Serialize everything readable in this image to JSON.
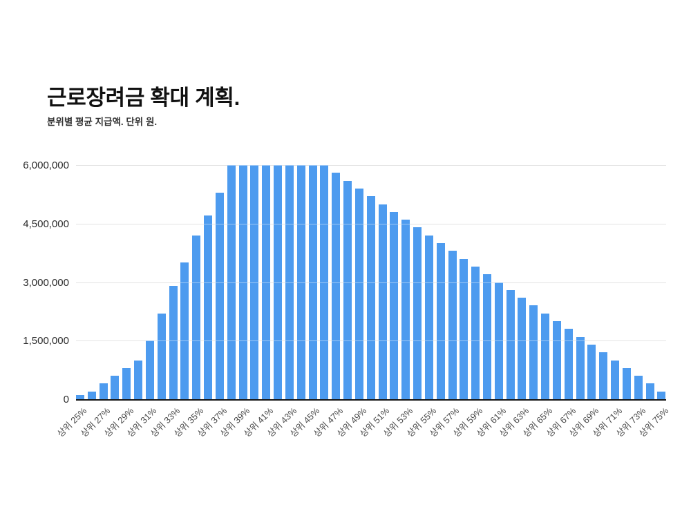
{
  "header": {
    "title": "근로장려금 확대 계획.",
    "subtitle": "분위별 평균 지급액. 단위 원."
  },
  "chart_data": {
    "type": "bar",
    "title": "근로장려금 확대 계획.",
    "subtitle": "분위별 평균 지급액. 단위 원.",
    "xlabel": "",
    "ylabel": "",
    "ylim": [
      0,
      6000000
    ],
    "grid": true,
    "bar_color": "#4d9bef",
    "gridline_color": "#cdcdcd",
    "axis_line_color": "#141414",
    "yticks": [
      0,
      1500000,
      3000000,
      4500000,
      6000000
    ],
    "ytick_labels": [
      "0",
      "1,500,000",
      "3,000,000",
      "4,500,000",
      "6,000,000"
    ],
    "xtick_label_step": 2,
    "categories": [
      "상위 25%",
      "상위 26%",
      "상위 27%",
      "상위 28%",
      "상위 29%",
      "상위 30%",
      "상위 31%",
      "상위 32%",
      "상위 33%",
      "상위 34%",
      "상위 35%",
      "상위 36%",
      "상위 37%",
      "상위 38%",
      "상위 39%",
      "상위 40%",
      "상위 41%",
      "상위 42%",
      "상위 43%",
      "상위 44%",
      "상위 45%",
      "상위 46%",
      "상위 47%",
      "상위 48%",
      "상위 49%",
      "상위 50%",
      "상위 51%",
      "상위 52%",
      "상위 53%",
      "상위 54%",
      "상위 55%",
      "상위 56%",
      "상위 57%",
      "상위 58%",
      "상위 59%",
      "상위 60%",
      "상위 61%",
      "상위 62%",
      "상위 63%",
      "상위 64%",
      "상위 65%",
      "상위 66%",
      "상위 67%",
      "상위 68%",
      "상위 69%",
      "상위 70%",
      "상위 71%",
      "상위 72%",
      "상위 73%",
      "상위 74%",
      "상위 75%"
    ],
    "values": [
      100000,
      200000,
      400000,
      600000,
      800000,
      1000000,
      1500000,
      2200000,
      2900000,
      3500000,
      4200000,
      4700000,
      5300000,
      6000000,
      6000000,
      6000000,
      6000000,
      6000000,
      6000000,
      6000000,
      6000000,
      6000000,
      5800000,
      5600000,
      5400000,
      5200000,
      5000000,
      4800000,
      4600000,
      4400000,
      4200000,
      4000000,
      3800000,
      3600000,
      3400000,
      3200000,
      3000000,
      2800000,
      2600000,
      2400000,
      2200000,
      2000000,
      1800000,
      1600000,
      1400000,
      1200000,
      1000000,
      800000,
      600000,
      400000,
      200000
    ]
  }
}
